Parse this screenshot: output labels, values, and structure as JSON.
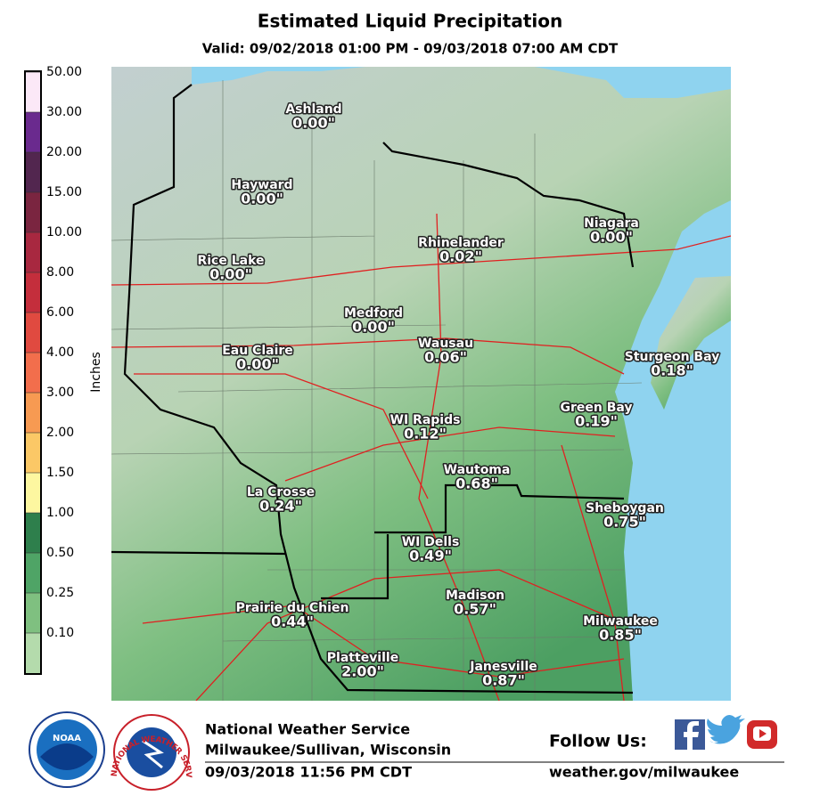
{
  "header": {
    "title": "Estimated Liquid Precipitation",
    "subtitle": "Valid: 09/02/2018 01:00 PM - 09/03/2018 07:00 AM CDT"
  },
  "legend": {
    "title": "Inches",
    "items": [
      {
        "label": "50.00",
        "color": "#fbe8f7"
      },
      {
        "label": "30.00",
        "color": "#6a2a8e"
      },
      {
        "label": "20.00",
        "color": "#52264f"
      },
      {
        "label": "15.00",
        "color": "#7a2540"
      },
      {
        "label": "10.00",
        "color": "#a82840"
      },
      {
        "label": "8.00",
        "color": "#c42e3c"
      },
      {
        "label": "6.00",
        "color": "#e04a40"
      },
      {
        "label": "4.00",
        "color": "#f26e4c"
      },
      {
        "label": "3.00",
        "color": "#f79a52"
      },
      {
        "label": "2.00",
        "color": "#fbc866"
      },
      {
        "label": "1.50",
        "color": "#fdf7a0"
      },
      {
        "label": "1.00",
        "color": "#2e7f4c"
      },
      {
        "label": "0.50",
        "color": "#4fa466"
      },
      {
        "label": "0.25",
        "color": "#7fc080"
      },
      {
        "label": "0.10",
        "color": "#b4dbac"
      }
    ]
  },
  "cities": [
    {
      "name": "Ashland",
      "amount": "0.00\""
    },
    {
      "name": "Hayward",
      "amount": "0.00\""
    },
    {
      "name": "Rice Lake",
      "amount": "0.00\""
    },
    {
      "name": "Eau Claire",
      "amount": "0.00\""
    },
    {
      "name": "Medford",
      "amount": "0.00\""
    },
    {
      "name": "Rhinelander",
      "amount": "0.02\""
    },
    {
      "name": "Wausau",
      "amount": "0.06\""
    },
    {
      "name": "Niagara",
      "amount": "0.00\""
    },
    {
      "name": "Sturgeon Bay",
      "amount": "0.18\""
    },
    {
      "name": "Green Bay",
      "amount": "0.19\""
    },
    {
      "name": "WI Rapids",
      "amount": "0.12\""
    },
    {
      "name": "Wautoma",
      "amount": "0.68\""
    },
    {
      "name": "La Crosse",
      "amount": "0.24\""
    },
    {
      "name": "Sheboygan",
      "amount": "0.75\""
    },
    {
      "name": "WI Dells",
      "amount": "0.49\""
    },
    {
      "name": "Prairie du Chien",
      "amount": "0.44\""
    },
    {
      "name": "Madison",
      "amount": "0.57\""
    },
    {
      "name": "Milwaukee",
      "amount": "0.85\""
    },
    {
      "name": "Platteville",
      "amount": "2.00\""
    },
    {
      "name": "Janesville",
      "amount": "0.87\""
    }
  ],
  "footer": {
    "office": "National Weather Service",
    "location": "Milwaukee/Sullivan, Wisconsin",
    "issued": "09/03/2018 11:56 PM CDT",
    "follow": "Follow Us:",
    "url": "weather.gov/milwaukee",
    "noaa_logo": "NOAA",
    "nws_logo": "NATIONAL WEATHER SERVICE"
  }
}
